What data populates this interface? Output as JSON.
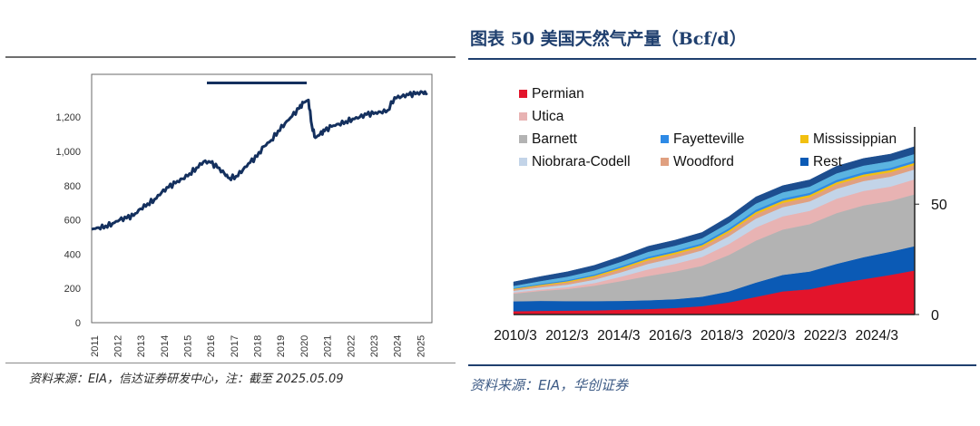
{
  "left_panel": {
    "source": "资料来源：EIA，信达证券研发中心，注：截至 2025.05.09",
    "chart_data": {
      "type": "line",
      "title": "",
      "xlabel": "",
      "ylabel": "",
      "x_ticks": [
        "2011",
        "2012",
        "2013",
        "2014",
        "2015",
        "2016",
        "2017",
        "2018",
        "2019",
        "2020",
        "2021",
        "2022",
        "2023",
        "2024",
        "2025"
      ],
      "y_ticks": [
        0,
        200,
        400,
        600,
        800,
        1000,
        1200
      ],
      "ylim": [
        0,
        1450
      ],
      "xlim": [
        2011.0,
        2025.6
      ],
      "grid": false,
      "color": "#14305e",
      "x": [
        2011.0,
        2011.3,
        2011.6,
        2011.9,
        2012.2,
        2012.5,
        2012.8,
        2013.1,
        2013.4,
        2013.7,
        2014.0,
        2014.3,
        2014.6,
        2014.9,
        2015.2,
        2015.5,
        2015.8,
        2016.1,
        2016.4,
        2016.7,
        2016.9,
        2017.2,
        2017.5,
        2017.8,
        2018.1,
        2018.4,
        2018.7,
        2019.0,
        2019.3,
        2019.6,
        2019.9,
        2020.1,
        2020.3,
        2020.45,
        2020.6,
        2020.8,
        2021.0,
        2021.3,
        2021.6,
        2021.9,
        2022.2,
        2022.5,
        2022.8,
        2023.1,
        2023.4,
        2023.7,
        2024.0,
        2024.3,
        2024.6,
        2024.9,
        2025.2,
        2025.4
      ],
      "y": [
        545,
        555,
        565,
        580,
        600,
        610,
        625,
        665,
        695,
        720,
        760,
        790,
        815,
        840,
        870,
        905,
        940,
        935,
        905,
        870,
        845,
        855,
        895,
        935,
        970,
        1030,
        1065,
        1120,
        1165,
        1205,
        1250,
        1285,
        1300,
        1150,
        1080,
        1100,
        1120,
        1145,
        1160,
        1175,
        1190,
        1200,
        1215,
        1220,
        1230,
        1240,
        1315,
        1320,
        1330,
        1335,
        1345,
        1340
      ]
    }
  },
  "right_panel": {
    "title": "图表 50   美国天然气产量（Bcf/d）",
    "source": "资料来源：EIA，华创证券",
    "chart_data": {
      "type": "area",
      "title": "美国天然气产量（Bcf/d）",
      "xlabel": "",
      "ylabel": "",
      "x_ticks": [
        "2010/3",
        "2012/3",
        "2014/3",
        "2016/3",
        "2018/3",
        "2020/3",
        "2022/3",
        "2024/3"
      ],
      "y_ticks": [
        0,
        50
      ],
      "ylim": [
        0,
        85
      ],
      "xlim": [
        2010.0,
        2024.9
      ],
      "grid": false,
      "legend": "top-left",
      "x": [
        2010.0,
        2011.0,
        2012.0,
        2013.0,
        2014.0,
        2015.0,
        2016.0,
        2017.0,
        2018.0,
        2019.0,
        2020.0,
        2021.0,
        2022.0,
        2023.0,
        2024.0,
        2024.9
      ],
      "series": [
        {
          "name": "Permian",
          "color": "#e3142b",
          "values": [
            1.5,
            1.7,
            1.8,
            1.9,
            2.2,
            2.5,
            3.0,
            3.8,
            5.5,
            8.0,
            10.5,
            11.5,
            14.0,
            16.0,
            18.0,
            20.0
          ]
        },
        {
          "name": "Rest",
          "color": "#0b5ab5",
          "values": [
            4.5,
            4.5,
            4.3,
            4.2,
            4.0,
            4.0,
            4.0,
            4.3,
            5.0,
            6.5,
            7.5,
            8.0,
            9.0,
            10.0,
            10.5,
            11.0
          ]
        },
        {
          "name": "Barnett",
          "color": "#b3b3b3",
          "values": [
            3.5,
            4.5,
            5.5,
            7.0,
            9.0,
            11.0,
            12.5,
            14.0,
            16.5,
            19.0,
            20.5,
            21.5,
            23.0,
            23.5,
            23.0,
            23.5
          ]
        },
        {
          "name": "Utica",
          "color": "#e8b3b3",
          "values": [
            0.5,
            0.6,
            0.8,
            1.2,
            2.0,
            3.0,
            3.5,
            4.0,
            5.0,
            6.0,
            6.0,
            6.0,
            6.5,
            6.5,
            6.5,
            6.8
          ]
        },
        {
          "name": "Niobrara-Codell",
          "color": "#c3d4e8",
          "values": [
            0.8,
            1.0,
            1.2,
            1.5,
            2.0,
            2.5,
            2.8,
            3.0,
            3.5,
            4.0,
            4.2,
            4.3,
            4.5,
            4.5,
            4.5,
            4.5
          ]
        },
        {
          "name": "Woodford",
          "color": "#e0a080",
          "values": [
            0.6,
            0.8,
            1.0,
            1.2,
            1.4,
            1.6,
            1.6,
            1.6,
            1.8,
            2.0,
            1.9,
            1.9,
            2.0,
            2.0,
            2.0,
            2.0
          ]
        },
        {
          "name": "Mississippian",
          "color": "#f2c010",
          "values": [
            0.3,
            0.4,
            0.5,
            0.6,
            0.7,
            0.8,
            0.8,
            0.8,
            0.9,
            1.0,
            1.0,
            1.0,
            1.0,
            1.0,
            1.0,
            1.0
          ]
        },
        {
          "name": "Fayetteville",
          "color": "#2e8ae6",
          "values": [
            0.3,
            0.4,
            0.5,
            0.6,
            0.7,
            0.8,
            0.8,
            0.8,
            0.9,
            1.0,
            1.0,
            1.0,
            1.0,
            1.0,
            1.0,
            1.0
          ]
        },
        {
          "name": "",
          "color": "#5bb3e0",
          "values": [
            1.0,
            1.3,
            1.6,
            1.8,
            2.0,
            2.2,
            2.2,
            2.3,
            2.5,
            2.8,
            2.8,
            2.8,
            3.0,
            3.0,
            3.0,
            3.0
          ]
        },
        {
          "name": "",
          "color": "#1d4e8f",
          "values": [
            1.8,
            2.0,
            2.2,
            2.3,
            2.4,
            2.5,
            2.5,
            2.6,
            2.8,
            3.0,
            3.0,
            3.0,
            3.2,
            3.2,
            3.2,
            3.3
          ]
        }
      ]
    }
  }
}
